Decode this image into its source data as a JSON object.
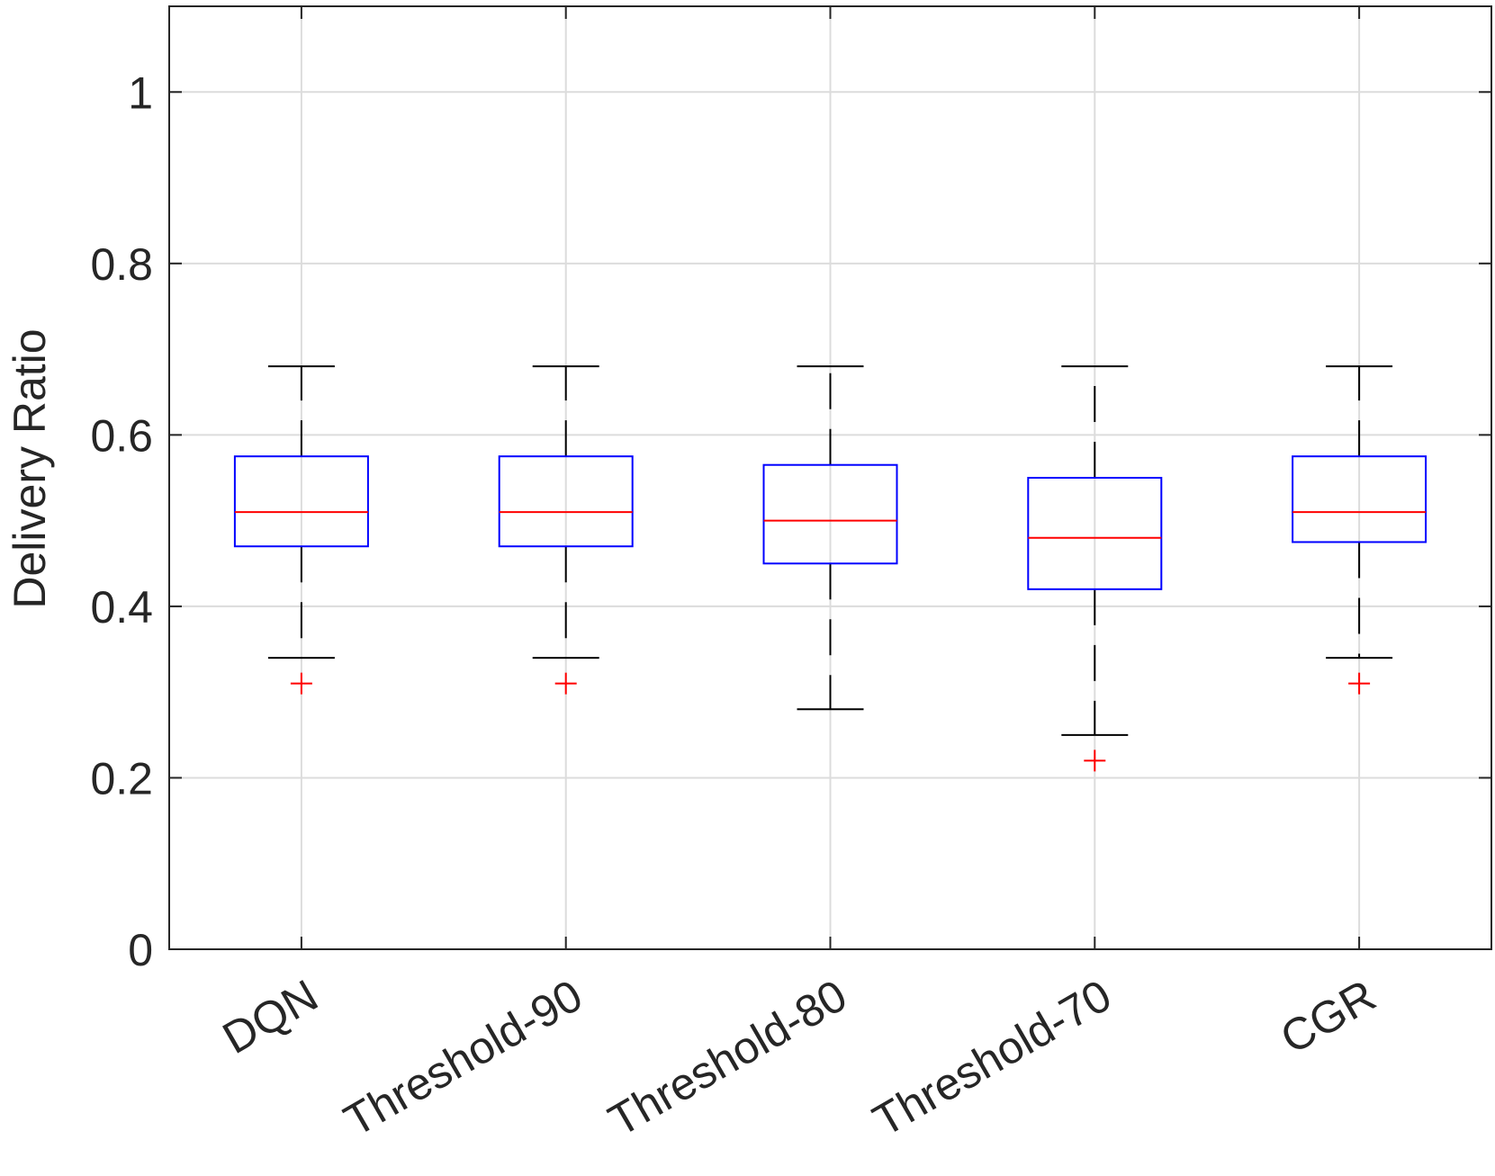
{
  "chart_data": {
    "type": "boxplot",
    "title": "",
    "xlabel": "",
    "ylabel": "Delivery Ratio",
    "ylim": [
      0,
      1.1
    ],
    "yticks": [
      0,
      0.2,
      0.4,
      0.6,
      0.8,
      1
    ],
    "ytick_labels": [
      "0",
      "0.2",
      "0.4",
      "0.6",
      "0.8",
      "1"
    ],
    "grid": true,
    "categories": [
      "DQN",
      "Threshold-90",
      "Threshold-80",
      "Threshold-70",
      "CGR"
    ],
    "boxes": [
      {
        "name": "DQN",
        "whisker_low": 0.34,
        "q1": 0.47,
        "median": 0.51,
        "q3": 0.575,
        "whisker_high": 0.68,
        "outliers": [
          0.31
        ]
      },
      {
        "name": "Threshold-90",
        "whisker_low": 0.34,
        "q1": 0.47,
        "median": 0.51,
        "q3": 0.575,
        "whisker_high": 0.68,
        "outliers": [
          0.31
        ]
      },
      {
        "name": "Threshold-80",
        "whisker_low": 0.28,
        "q1": 0.45,
        "median": 0.5,
        "q3": 0.565,
        "whisker_high": 0.68,
        "outliers": []
      },
      {
        "name": "Threshold-70",
        "whisker_low": 0.25,
        "q1": 0.42,
        "median": 0.48,
        "q3": 0.55,
        "whisker_high": 0.68,
        "outliers": [
          0.22
        ]
      },
      {
        "name": "CGR",
        "whisker_low": 0.34,
        "q1": 0.475,
        "median": 0.51,
        "q3": 0.575,
        "whisker_high": 0.68,
        "outliers": [
          0.31
        ]
      }
    ],
    "colors": {
      "box": "#0000ff",
      "median": "#ff0000",
      "whisker": "#000000",
      "outlier": "#ff0000",
      "grid": "#dcdcdc",
      "axis": "#262626"
    }
  }
}
